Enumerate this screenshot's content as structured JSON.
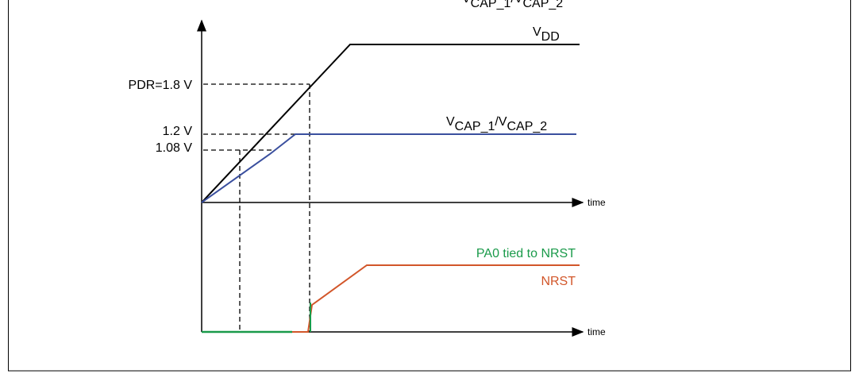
{
  "header": {
    "cropped_label": [
      {
        "text": "V",
        "sub": false
      },
      {
        "text": "CAP_1",
        "sub": true
      },
      {
        "text": "/V",
        "sub": false
      },
      {
        "text": "CAP_2",
        "sub": true
      }
    ]
  },
  "levels": {
    "pdr": "PDR=1.8 V",
    "v12": "1.2 V",
    "v108": "1.08 V"
  },
  "curves": {
    "vdd": [
      {
        "text": "V",
        "sub": false
      },
      {
        "text": "DD",
        "sub": true
      }
    ],
    "vcap": [
      {
        "text": "V",
        "sub": false
      },
      {
        "text": "CAP_1",
        "sub": true
      },
      {
        "text": "/V",
        "sub": false
      },
      {
        "text": "CAP_2",
        "sub": true
      }
    ],
    "pa0": "PA0 tied to NRST",
    "nrst": "NRST"
  },
  "axes": {
    "time_upper": "time",
    "time_lower": "time"
  }
}
